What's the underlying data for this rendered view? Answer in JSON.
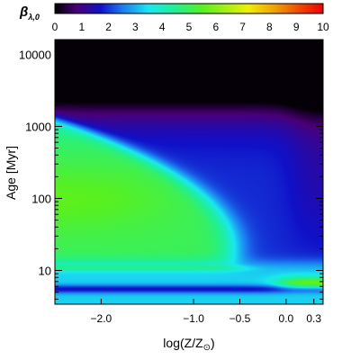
{
  "chart_data": {
    "type": "heatmap",
    "title": "",
    "colorbar": {
      "label_main": "β",
      "label_sub": "λ,0",
      "ticks": [
        "0",
        "1",
        "2",
        "3",
        "4",
        "5",
        "6",
        "7",
        "8",
        "9",
        "10"
      ],
      "range": [
        0,
        10
      ],
      "colormap": "rainbow (purple-blue-cyan-green-yellow-red)"
    },
    "xaxis": {
      "label": "log(Z/Z⊙)",
      "label_main": "log(Z/Z",
      "label_sun": "⊙",
      "label_close": ")",
      "range": [
        -2.5,
        0.4
      ],
      "ticks": [
        {
          "value": -2.0,
          "label": "−2.0"
        },
        {
          "value": -1.0,
          "label": "−1.0"
        },
        {
          "value": -0.5,
          "label": "−0.5"
        },
        {
          "value": 0.0,
          "label": "0.0"
        },
        {
          "value": 0.3,
          "label": "0.3"
        }
      ]
    },
    "yaxis": {
      "label": "Age [Myr]",
      "label_main": "Age ",
      "label_bracket": "[Myr]",
      "scale": "log",
      "range": [
        3.4,
        16000
      ],
      "ticks": [
        {
          "value": 10,
          "label": "10"
        },
        {
          "value": 100,
          "label": "100"
        },
        {
          "value": 1000,
          "label": "1000"
        },
        {
          "value": 10000,
          "label": "10000"
        }
      ]
    },
    "grid": false,
    "description_values": {
      "peak_region": {
        "logZ_range": [
          -2.5,
          -1.7
        ],
        "age_range_myr": [
          60,
          250
        ],
        "beta": 5.4
      },
      "young_band_cyan": {
        "age_myr": 7,
        "beta": 3.2
      },
      "youngest_band": {
        "age_myr": 4.5,
        "beta": 1.8
      },
      "old_solar_corner": {
        "logZ": 0.35,
        "age_myr": 14000,
        "beta": 0.1
      }
    }
  }
}
